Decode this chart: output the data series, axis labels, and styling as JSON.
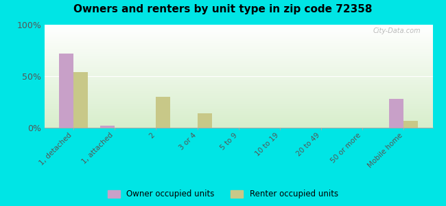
{
  "title": "Owners and renters by unit type in zip code 72358",
  "categories": [
    "1, detached",
    "1, attached",
    "2",
    "3 or 4",
    "5 to 9",
    "10 to 19",
    "20 to 49",
    "50 or more",
    "Mobile home"
  ],
  "owner_values": [
    72,
    2,
    0,
    0,
    0,
    0,
    0,
    0,
    28
  ],
  "renter_values": [
    54,
    0,
    30,
    14,
    0,
    0,
    0,
    0,
    7
  ],
  "owner_color": "#c8a0c8",
  "renter_color": "#c8c888",
  "background_color": "#00e5e5",
  "ylabel": "",
  "ylim": [
    0,
    100
  ],
  "yticks": [
    0,
    50,
    100
  ],
  "ytick_labels": [
    "0%",
    "50%",
    "100%"
  ],
  "bar_width": 0.35,
  "legend_owner": "Owner occupied units",
  "legend_renter": "Renter occupied units",
  "watermark": "City-Data.com"
}
